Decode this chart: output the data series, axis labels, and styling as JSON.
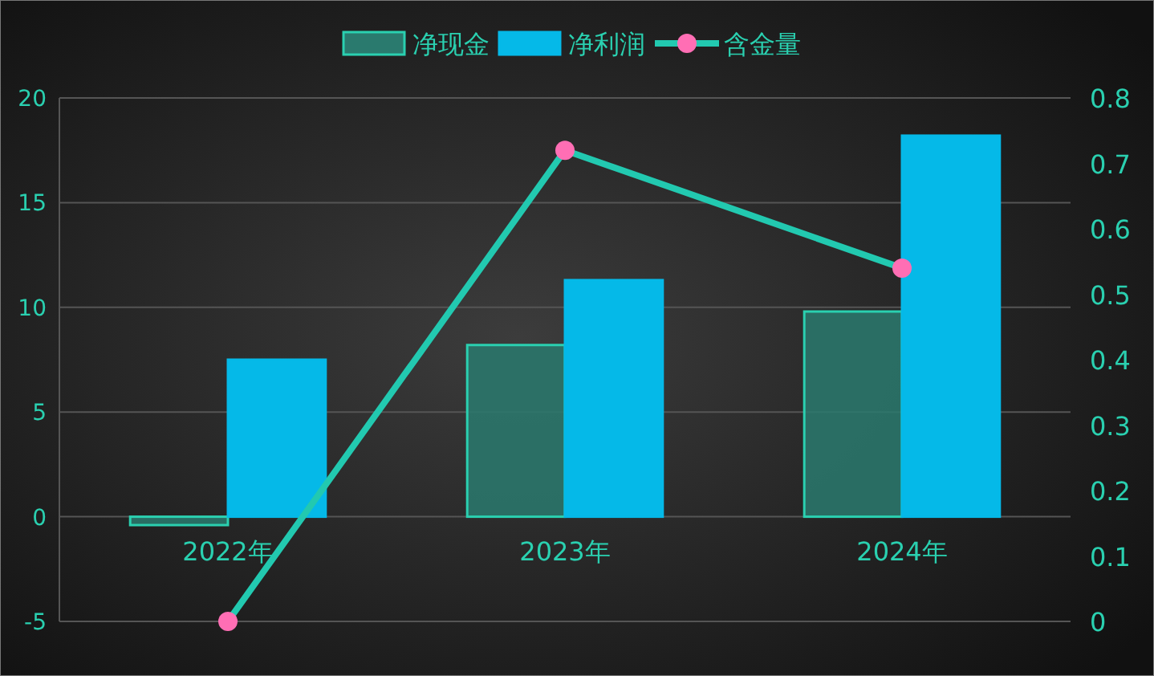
{
  "chart_data": {
    "type": "bar",
    "categories": [
      "2022年",
      "2023年",
      "2024年"
    ],
    "series": [
      {
        "name": "净现金",
        "color": "#2a7a6e",
        "values": [
          -0.4,
          8.2,
          9.8
        ]
      },
      {
        "name": "净利润",
        "color": "#05b9e8",
        "values": [
          7.5,
          11.3,
          18.2
        ]
      },
      {
        "name": "含金量",
        "type": "line",
        "axis": "y2",
        "color": "#22c9b0",
        "marker": "circle",
        "line_style": "solid",
        "values": [
          0,
          0.72,
          0.54
        ]
      }
    ],
    "ylim": [
      -5,
      20
    ],
    "yticks": [
      -5,
      0,
      5,
      10,
      15,
      20
    ],
    "y2lim": [
      0,
      0.8
    ],
    "y2ticks": [
      0,
      0.1,
      0.2,
      0.3,
      0.4,
      0.5,
      0.6,
      0.7,
      0.8
    ],
    "grid": "y",
    "legend": "top"
  }
}
